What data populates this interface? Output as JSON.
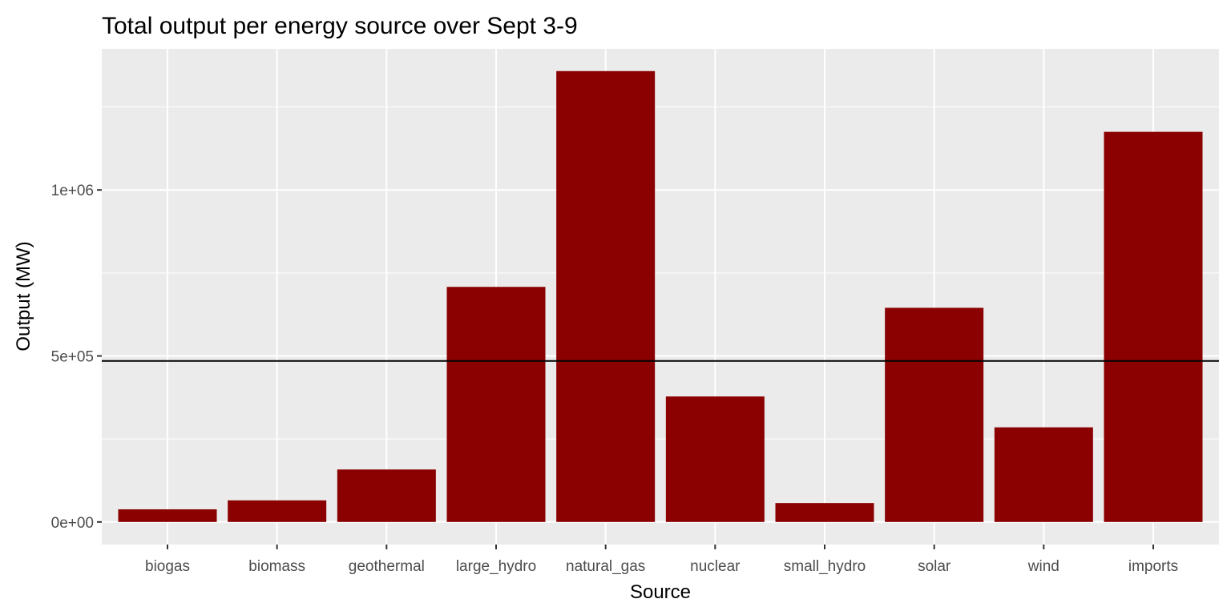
{
  "chart_data": {
    "type": "bar",
    "title": "Total output per energy source over Sept 3-9",
    "xlabel": "Source",
    "ylabel": "Output (MW)",
    "categories": [
      "biogas",
      "biomass",
      "geothermal",
      "large_hydro",
      "natural_gas",
      "nuclear",
      "small_hydro",
      "solar",
      "wind",
      "imports"
    ],
    "values": [
      38000,
      65000,
      158000,
      708000,
      1358000,
      378000,
      57000,
      645000,
      285000,
      1175000
    ],
    "ylim": [
      -68000,
      1425000
    ],
    "yticks": [
      {
        "value": 0,
        "label": "0e+00"
      },
      {
        "value": 500000,
        "label": "5e+05"
      },
      {
        "value": 1000000,
        "label": "1e+06"
      }
    ],
    "reference_line": {
      "orientation": "horizontal",
      "value": 485000,
      "color": "#000000"
    },
    "bar_color": "#8b0000",
    "panel_background": "#ebebeb",
    "gridline_color": "#ffffff",
    "grid": true,
    "legend": "none"
  }
}
